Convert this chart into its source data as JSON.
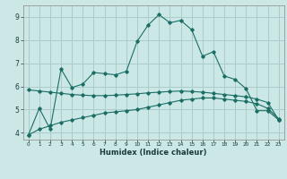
{
  "title": "",
  "xlabel": "Humidex (Indice chaleur)",
  "background_color": "#cce8e6",
  "grid_color": "#aaccca",
  "line_color": "#1a6e64",
  "xlim": [
    -0.5,
    23.5
  ],
  "ylim": [
    3.7,
    9.5
  ],
  "xticks": [
    0,
    1,
    2,
    3,
    4,
    5,
    6,
    7,
    8,
    9,
    10,
    11,
    12,
    13,
    14,
    15,
    16,
    17,
    18,
    19,
    20,
    21,
    22,
    23
  ],
  "yticks": [
    4,
    5,
    6,
    7,
    8,
    9
  ],
  "curve1_x": [
    0,
    1,
    2,
    3,
    4,
    5,
    6,
    7,
    8,
    9,
    10,
    11,
    12,
    13,
    14,
    15,
    16,
    17,
    18,
    19,
    20,
    21,
    22,
    23
  ],
  "curve1_y": [
    3.9,
    5.05,
    4.15,
    6.75,
    5.95,
    6.1,
    6.6,
    6.55,
    6.5,
    6.65,
    7.95,
    8.65,
    9.1,
    8.75,
    8.85,
    8.45,
    7.3,
    7.5,
    6.45,
    6.3,
    5.9,
    4.95,
    4.95,
    4.55
  ],
  "curve2_x": [
    0,
    1,
    2,
    3,
    4,
    5,
    6,
    7,
    8,
    9,
    10,
    11,
    12,
    13,
    14,
    15,
    16,
    17,
    18,
    19,
    20,
    21,
    22,
    23
  ],
  "curve2_y": [
    3.9,
    4.15,
    4.3,
    4.45,
    4.55,
    4.65,
    4.75,
    4.85,
    4.9,
    4.95,
    5.0,
    5.1,
    5.2,
    5.3,
    5.4,
    5.45,
    5.5,
    5.5,
    5.45,
    5.4,
    5.35,
    5.25,
    5.05,
    4.6
  ],
  "curve3_x": [
    0,
    1,
    2,
    3,
    4,
    5,
    6,
    7,
    8,
    9,
    10,
    11,
    12,
    13,
    14,
    15,
    16,
    17,
    18,
    19,
    20,
    21,
    22,
    23
  ],
  "curve3_y": [
    5.85,
    5.8,
    5.75,
    5.7,
    5.65,
    5.62,
    5.6,
    5.6,
    5.62,
    5.65,
    5.68,
    5.72,
    5.75,
    5.78,
    5.8,
    5.78,
    5.75,
    5.7,
    5.65,
    5.6,
    5.55,
    5.45,
    5.3,
    4.55
  ]
}
